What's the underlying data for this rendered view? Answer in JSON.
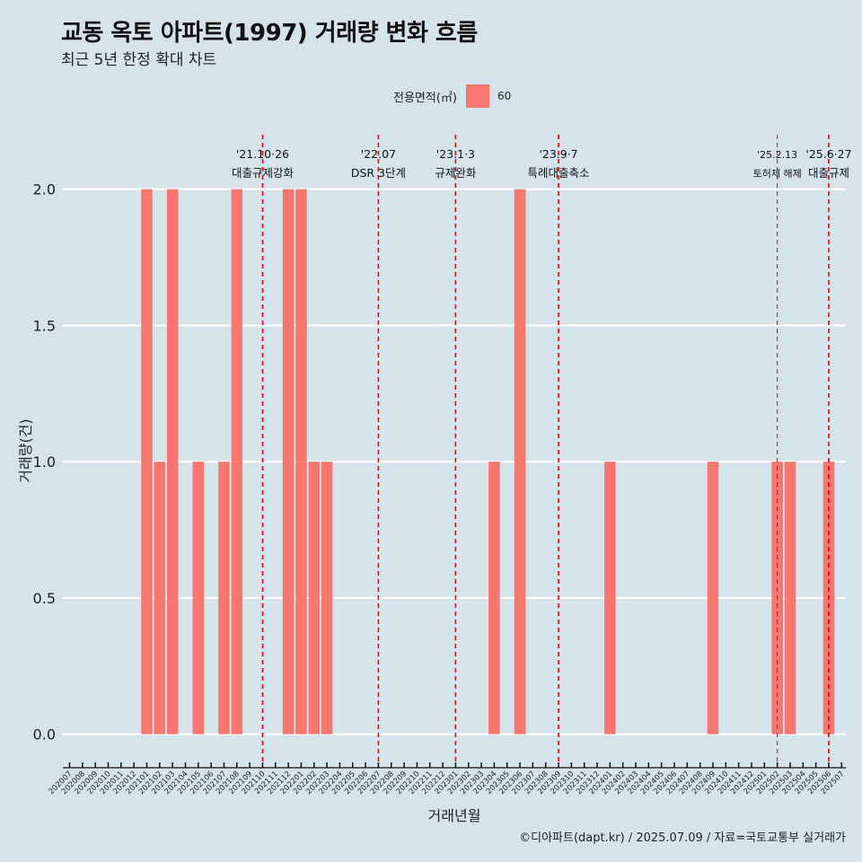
{
  "chart_data": {
    "type": "bar",
    "title": "교동 옥토 아파트(1997) 거래량 변화 흐름",
    "subtitle": "최근 5년 한정 확대 차트",
    "xlabel": "거래년월",
    "ylabel": "거래량(건)",
    "ylim": [
      -0.1,
      2.2
    ],
    "yticks": [
      "0.0",
      "0.5",
      "1.0",
      "1.5",
      "2.0"
    ],
    "legend": {
      "title": "전용면적(㎡)",
      "value": "60",
      "position": "top"
    },
    "series": [
      {
        "name": "60",
        "color": "#f8766d",
        "points": [
          [
            "202101",
            2
          ],
          [
            "202102",
            1
          ],
          [
            "202103",
            2
          ],
          [
            "202105",
            1
          ],
          [
            "202107",
            1
          ],
          [
            "202108",
            2
          ],
          [
            "202112",
            2
          ],
          [
            "202201",
            2
          ],
          [
            "202202",
            1
          ],
          [
            "202203",
            1
          ],
          [
            "202304",
            1
          ],
          [
            "202306",
            2
          ],
          [
            "202401",
            1
          ],
          [
            "202409",
            1
          ],
          [
            "202502",
            1
          ],
          [
            "202503",
            1
          ],
          [
            "202506",
            1
          ]
        ]
      }
    ],
    "events": [
      {
        "month": "202110",
        "date": "'21.10·26",
        "label": "대출규제강화"
      },
      {
        "month": "202207",
        "date": "'22.07",
        "label": "DSR 3단계"
      },
      {
        "month": "202301",
        "date": "'23.1·3",
        "label": "규제완화"
      },
      {
        "month": "202309",
        "date": "'23.9·7",
        "label": "특례대출축소"
      },
      {
        "month": "202502",
        "date": "'25.2.13",
        "label": "토허제 해제"
      },
      {
        "month": "202506",
        "date": "'25.6·27",
        "label": "대출규제"
      }
    ],
    "categories": [
      "202007",
      "202008",
      "202009",
      "202010",
      "202011",
      "202012",
      "202101",
      "202102",
      "202103",
      "202104",
      "202105",
      "202106",
      "202107",
      "202108",
      "202109",
      "202110",
      "202111",
      "202112",
      "202201",
      "202202",
      "202203",
      "202204",
      "202205",
      "202206",
      "202207",
      "202208",
      "202209",
      "202210",
      "202211",
      "202212",
      "202301",
      "202302",
      "202303",
      "202304",
      "202305",
      "202306",
      "202307",
      "202308",
      "202309",
      "202310",
      "202311",
      "202312",
      "202401",
      "202402",
      "202403",
      "202404",
      "202405",
      "202406",
      "202407",
      "202408",
      "202409",
      "202410",
      "202411",
      "202412",
      "202501",
      "202502",
      "202503",
      "202504",
      "202505",
      "202506",
      "202507"
    ]
  },
  "caption": "©디아파트(dapt.kr) / 2025.07.09 / 자료=국토교통부 실거래가",
  "colors": {
    "bar": "#f8766d",
    "event_line": "#e8000b",
    "background": "#d5e3ea",
    "grid": "#ffffff"
  }
}
